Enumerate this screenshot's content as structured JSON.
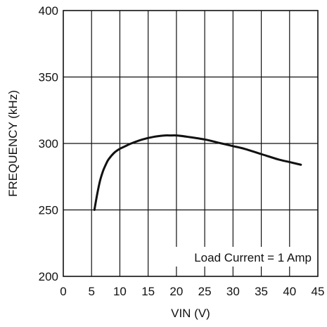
{
  "chart_data": {
    "type": "line",
    "title": "",
    "xlabel": "VIN (V)",
    "ylabel": "FREQUENCY (kHz)",
    "xlim": [
      0,
      45
    ],
    "ylim": [
      200,
      400
    ],
    "x_ticks": [
      "0",
      "5",
      "10",
      "15",
      "20",
      "25",
      "30",
      "35",
      "40",
      "45"
    ],
    "y_ticks": [
      "200",
      "250",
      "300",
      "350",
      "400"
    ],
    "grid": true,
    "annotation": "Load Current = 1 Amp",
    "series": [
      {
        "x": [
          5.5,
          6,
          6.5,
          7,
          7.5,
          8,
          9,
          10,
          11,
          12,
          14,
          16,
          18,
          19,
          20,
          22,
          25,
          28,
          30,
          32,
          35,
          38,
          40,
          42
        ],
        "y": [
          250,
          262,
          272,
          279,
          284,
          288,
          293,
          296,
          298,
          300,
          303,
          305,
          306,
          306,
          306,
          305,
          303,
          300,
          298,
          296,
          292,
          288,
          286,
          284
        ]
      }
    ],
    "colors": {
      "line": "#111111",
      "grid": "#111111",
      "background": "#ffffff"
    }
  }
}
